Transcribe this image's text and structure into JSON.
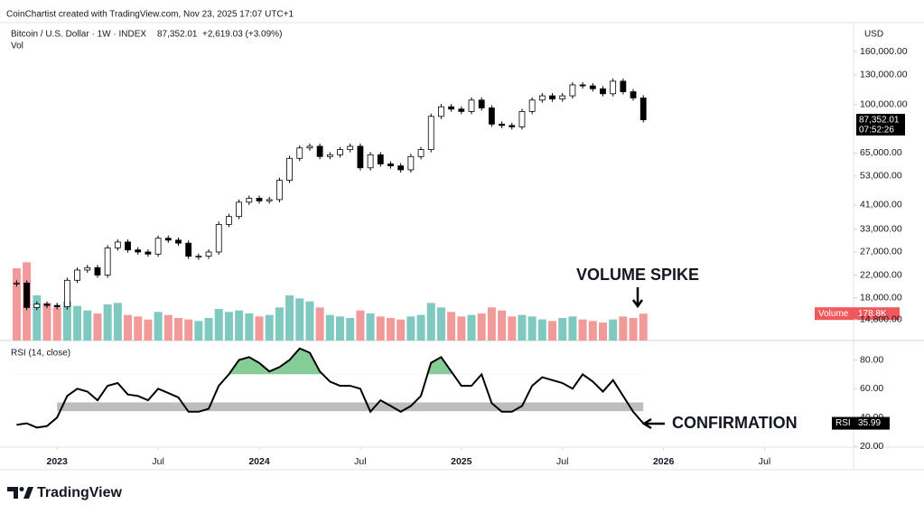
{
  "header": {
    "attribution": "CoinChartist created with TradingView.com, Nov 23, 2025 17:07 UTC+1",
    "symbol": "Bitcoin / U.S. Dollar · 1W · INDEX",
    "last": "87,352.01",
    "change": "+2,619.03 (+3.09%)",
    "volume_legend": "Vol",
    "currency": "USD",
    "countdown": "07:52:26"
  },
  "chart_data": [
    {
      "type": "candlestick",
      "log_scale": true,
      "grid": false,
      "up_color": "#ffffff",
      "down_color": "#000000",
      "x": [
        2022.8,
        2022.85,
        2022.9,
        2022.95,
        2023.0,
        2023.05,
        2023.1,
        2023.15,
        2023.2,
        2023.25,
        2023.3,
        2023.35,
        2023.4,
        2023.45,
        2023.5,
        2023.55,
        2023.6,
        2023.65,
        2023.7,
        2023.75,
        2023.8,
        2023.85,
        2023.9,
        2023.95,
        2024.0,
        2024.05,
        2024.1,
        2024.15,
        2024.2,
        2024.25,
        2024.3,
        2024.35,
        2024.4,
        2024.45,
        2024.5,
        2024.55,
        2024.6,
        2024.65,
        2024.7,
        2024.75,
        2024.8,
        2024.85,
        2024.9,
        2024.95,
        2025.0,
        2025.05,
        2025.1,
        2025.15,
        2025.2,
        2025.25,
        2025.3,
        2025.35,
        2025.4,
        2025.45,
        2025.5,
        2025.55,
        2025.6,
        2025.65,
        2025.7,
        2025.75,
        2025.8,
        2025.85,
        2025.9
      ],
      "values": [
        20500,
        16500,
        17000,
        16800,
        16600,
        21000,
        23000,
        23500,
        22000,
        28000,
        29500,
        27500,
        27000,
        26500,
        30500,
        30000,
        29200,
        26000,
        26000,
        27000,
        34500,
        37000,
        42000,
        43500,
        42500,
        43000,
        51000,
        62000,
        68000,
        69000,
        63000,
        64000,
        67000,
        69000,
        57000,
        64000,
        59000,
        58000,
        56000,
        63000,
        67000,
        90000,
        98000,
        96000,
        94000,
        104000,
        97000,
        84000,
        83000,
        82000,
        94000,
        104000,
        108000,
        105000,
        108000,
        119000,
        118000,
        115000,
        110000,
        123000,
        112000,
        106000,
        87352.01
      ],
      "xlim": [
        2022.74,
        2026.94
      ],
      "xticks": [
        2023,
        {
          "value": 2023.5,
          "label": "Jul"
        },
        2024,
        {
          "value": 2024.5,
          "label": "Jul"
        },
        2025,
        {
          "value": 2025.5,
          "label": "Jul"
        },
        2026,
        {
          "value": 2026.5,
          "label": "Jul"
        }
      ],
      "ylim": [
        12300,
        202000
      ],
      "yticks": [
        {
          "value": 160000,
          "label": "160,000.00"
        },
        {
          "value": 130000,
          "label": "130,000.00"
        },
        {
          "value": 100000,
          "label": "100,000.00"
        },
        {
          "value": 65000,
          "label": "65,000.00"
        },
        {
          "value": 53000,
          "label": "53,000.00"
        },
        {
          "value": 41000,
          "label": "41,000.00"
        },
        {
          "value": 33000,
          "label": "33,000.00"
        },
        {
          "value": 27000,
          "label": "27,000.00"
        },
        {
          "value": 22000,
          "label": "22,000.00"
        },
        {
          "value": 18000,
          "label": "18,000.00"
        },
        {
          "value": 14800,
          "label": "14,800.00"
        }
      ],
      "annotation": "VOLUME SPIKE"
    },
    {
      "type": "bar",
      "label": "Volume",
      "last_value_label": "178.8K",
      "up_color": "#7fc9c0",
      "down_color": "#f19a9a",
      "label_color": "#f0595c",
      "values": [
        480,
        520,
        300,
        250,
        220,
        260,
        230,
        200,
        180,
        240,
        250,
        170,
        160,
        140,
        190,
        170,
        150,
        140,
        130,
        150,
        210,
        190,
        200,
        180,
        160,
        170,
        220,
        300,
        280,
        260,
        220,
        170,
        160,
        150,
        200,
        180,
        160,
        150,
        140,
        160,
        170,
        250,
        220,
        190,
        160,
        170,
        180,
        220,
        200,
        160,
        170,
        160,
        140,
        130,
        150,
        160,
        140,
        130,
        120,
        140,
        160,
        150,
        178.8
      ],
      "ylim": [
        0,
        600
      ]
    },
    {
      "type": "line",
      "title": "RSI (14, close)",
      "label": "RSI",
      "color": "#000000",
      "overbought_fill": "#86cc97",
      "values": [
        35,
        36,
        33,
        34,
        40,
        55,
        60,
        58,
        52,
        62,
        64,
        56,
        55,
        52,
        60,
        57,
        54,
        44,
        44,
        46,
        62,
        70,
        80,
        82,
        78,
        72,
        75,
        80,
        88,
        85,
        72,
        65,
        62,
        62,
        60,
        44,
        52,
        48,
        44,
        48,
        55,
        78,
        82,
        72,
        62,
        62,
        70,
        50,
        44,
        44,
        48,
        62,
        68,
        66,
        64,
        60,
        70,
        65,
        58,
        66,
        55,
        44,
        35.99
      ],
      "ylim": [
        19.4,
        91.6
      ],
      "overbought": 70,
      "yticks": [
        {
          "value": 80,
          "label": "80.00"
        },
        {
          "value": 60,
          "label": "60.00"
        },
        {
          "value": 40,
          "label": "40.00"
        },
        {
          "value": 20,
          "label": "20.00"
        }
      ],
      "band": {
        "x": [
          2023.0,
          2025.9
        ],
        "y": [
          44.4,
          50.5
        ],
        "color": "#bdbdbd"
      },
      "annotation": "CONFIRMATION"
    }
  ],
  "footer": {
    "brand": "TradingView"
  }
}
